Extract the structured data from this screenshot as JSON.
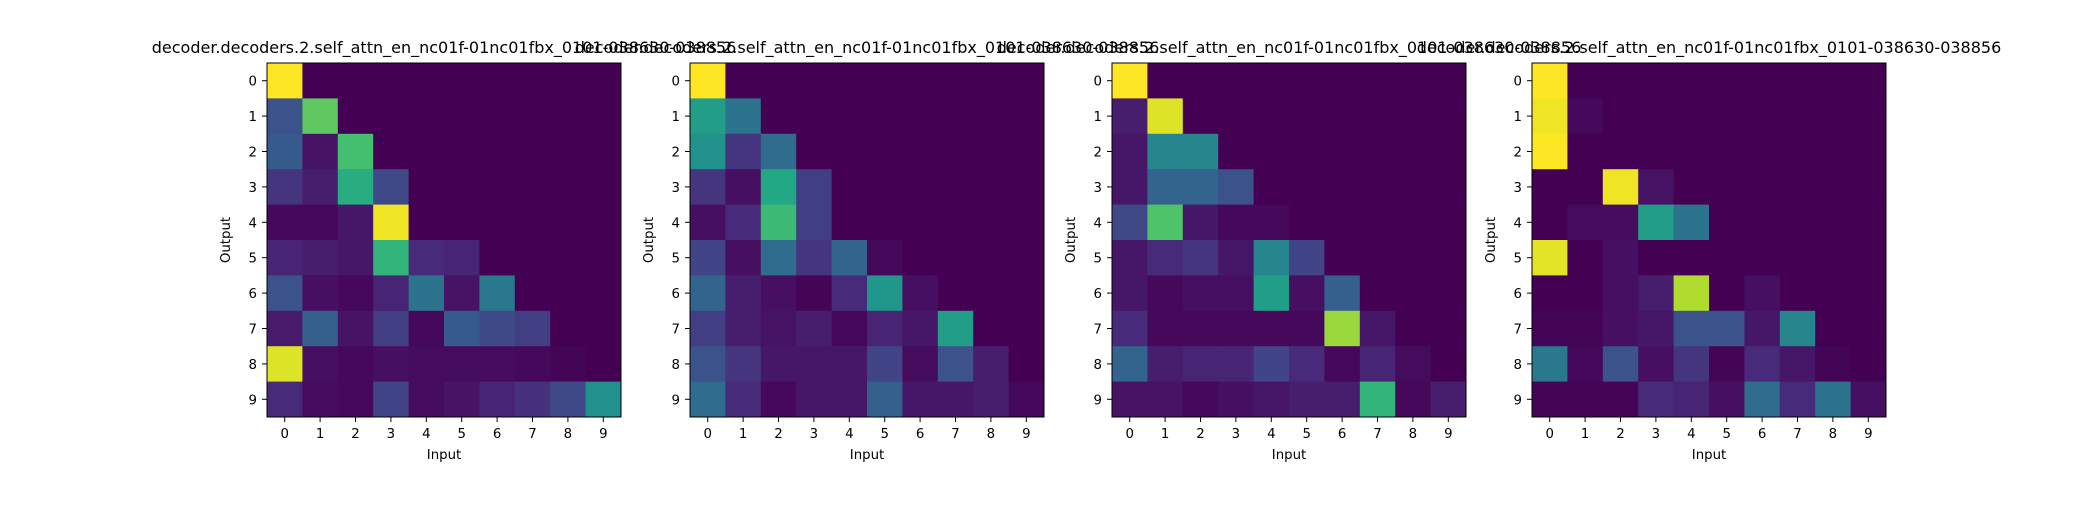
{
  "chart_data": [
    {
      "type": "heatmap",
      "title": "decoder.decoders.2.self_attn_en_nc01f-01nc01fbx_0101-038630-038856",
      "xlabel": "Input",
      "ylabel": "Output",
      "x_ticks": [
        "0",
        "1",
        "2",
        "3",
        "4",
        "5",
        "6",
        "7",
        "8",
        "9"
      ],
      "y_ticks": [
        "0",
        "1",
        "2",
        "3",
        "4",
        "5",
        "6",
        "7",
        "8",
        "9"
      ],
      "colormap": "viridis",
      "vmin": 0,
      "vmax": 1,
      "z": [
        [
          1.0,
          0.0,
          0.0,
          0.0,
          0.0,
          0.0,
          0.0,
          0.0,
          0.0,
          0.0
        ],
        [
          0.25,
          0.75,
          0.0,
          0.0,
          0.0,
          0.0,
          0.0,
          0.0,
          0.0,
          0.0
        ],
        [
          0.28,
          0.05,
          0.7,
          0.0,
          0.0,
          0.0,
          0.0,
          0.0,
          0.0,
          0.0
        ],
        [
          0.15,
          0.08,
          0.62,
          0.22,
          0.0,
          0.0,
          0.0,
          0.0,
          0.0,
          0.0
        ],
        [
          0.02,
          0.02,
          0.06,
          0.98,
          0.0,
          0.0,
          0.0,
          0.0,
          0.0,
          0.0
        ],
        [
          0.1,
          0.08,
          0.06,
          0.65,
          0.12,
          0.1,
          0.0,
          0.0,
          0.0,
          0.0
        ],
        [
          0.25,
          0.04,
          0.02,
          0.1,
          0.38,
          0.05,
          0.4,
          0.0,
          0.0,
          0.0
        ],
        [
          0.07,
          0.3,
          0.05,
          0.18,
          0.02,
          0.28,
          0.22,
          0.18,
          0.0,
          0.0
        ],
        [
          0.95,
          0.04,
          0.02,
          0.04,
          0.03,
          0.03,
          0.03,
          0.02,
          0.01,
          0.0
        ],
        [
          0.12,
          0.03,
          0.02,
          0.2,
          0.03,
          0.05,
          0.1,
          0.14,
          0.22,
          0.5
        ]
      ]
    },
    {
      "type": "heatmap",
      "title": "decoder.decoders.2.self_attn_en_nc01f-01nc01fbx_0101-038630-038856",
      "xlabel": "Input",
      "ylabel": "Output",
      "x_ticks": [
        "0",
        "1",
        "2",
        "3",
        "4",
        "5",
        "6",
        "7",
        "8",
        "9"
      ],
      "y_ticks": [
        "0",
        "1",
        "2",
        "3",
        "4",
        "5",
        "6",
        "7",
        "8",
        "9"
      ],
      "colormap": "viridis",
      "vmin": 0,
      "vmax": 1,
      "z": [
        [
          1.0,
          0.0,
          0.0,
          0.0,
          0.0,
          0.0,
          0.0,
          0.0,
          0.0,
          0.0
        ],
        [
          0.55,
          0.38,
          0.0,
          0.0,
          0.0,
          0.0,
          0.0,
          0.0,
          0.0,
          0.0
        ],
        [
          0.5,
          0.15,
          0.35,
          0.0,
          0.0,
          0.0,
          0.0,
          0.0,
          0.0,
          0.0
        ],
        [
          0.15,
          0.04,
          0.6,
          0.18,
          0.0,
          0.0,
          0.0,
          0.0,
          0.0,
          0.0
        ],
        [
          0.04,
          0.12,
          0.68,
          0.18,
          0.0,
          0.0,
          0.0,
          0.0,
          0.0,
          0.0
        ],
        [
          0.2,
          0.04,
          0.35,
          0.15,
          0.32,
          0.02,
          0.0,
          0.0,
          0.0,
          0.0
        ],
        [
          0.32,
          0.08,
          0.04,
          0.01,
          0.12,
          0.52,
          0.04,
          0.0,
          0.0,
          0.0
        ],
        [
          0.18,
          0.08,
          0.05,
          0.08,
          0.02,
          0.1,
          0.06,
          0.55,
          0.0,
          0.0
        ],
        [
          0.25,
          0.15,
          0.06,
          0.06,
          0.06,
          0.2,
          0.03,
          0.25,
          0.08,
          0.0
        ],
        [
          0.35,
          0.12,
          0.02,
          0.06,
          0.06,
          0.3,
          0.06,
          0.06,
          0.08,
          0.02
        ]
      ]
    },
    {
      "type": "heatmap",
      "title": "decoder.decoders.2.self_attn_en_nc01f-01nc01fbx_0101-038630-038856",
      "xlabel": "Input",
      "ylabel": "Output",
      "x_ticks": [
        "0",
        "1",
        "2",
        "3",
        "4",
        "5",
        "6",
        "7",
        "8",
        "9"
      ],
      "y_ticks": [
        "0",
        "1",
        "2",
        "3",
        "4",
        "5",
        "6",
        "7",
        "8",
        "9"
      ],
      "colormap": "viridis",
      "vmin": 0,
      "vmax": 1,
      "z": [
        [
          1.0,
          0.0,
          0.0,
          0.0,
          0.0,
          0.0,
          0.0,
          0.0,
          0.0,
          0.0
        ],
        [
          0.08,
          0.95,
          0.0,
          0.0,
          0.0,
          0.0,
          0.0,
          0.0,
          0.0,
          0.0
        ],
        [
          0.06,
          0.45,
          0.45,
          0.0,
          0.0,
          0.0,
          0.0,
          0.0,
          0.0,
          0.0
        ],
        [
          0.06,
          0.32,
          0.32,
          0.25,
          0.0,
          0.0,
          0.0,
          0.0,
          0.0,
          0.0
        ],
        [
          0.22,
          0.72,
          0.06,
          0.02,
          0.02,
          0.0,
          0.0,
          0.0,
          0.0,
          0.0
        ],
        [
          0.06,
          0.12,
          0.15,
          0.06,
          0.45,
          0.2,
          0.0,
          0.0,
          0.0,
          0.0
        ],
        [
          0.06,
          0.02,
          0.04,
          0.04,
          0.55,
          0.04,
          0.3,
          0.0,
          0.0,
          0.0
        ],
        [
          0.12,
          0.02,
          0.02,
          0.02,
          0.02,
          0.02,
          0.85,
          0.06,
          0.0,
          0.0
        ],
        [
          0.32,
          0.08,
          0.1,
          0.1,
          0.2,
          0.12,
          0.02,
          0.1,
          0.03,
          0.0
        ],
        [
          0.05,
          0.05,
          0.02,
          0.04,
          0.06,
          0.08,
          0.08,
          0.65,
          0.02,
          0.08
        ]
      ]
    },
    {
      "type": "heatmap",
      "title": "decoder.decoders.2.self_attn_en_nc01f-01nc01fbx_0101-038630-038856",
      "xlabel": "Input",
      "ylabel": "Output",
      "x_ticks": [
        "0",
        "1",
        "2",
        "3",
        "4",
        "5",
        "6",
        "7",
        "8",
        "9"
      ],
      "y_ticks": [
        "0",
        "1",
        "2",
        "3",
        "4",
        "5",
        "6",
        "7",
        "8",
        "9"
      ],
      "colormap": "viridis",
      "vmin": 0,
      "vmax": 1,
      "z": [
        [
          1.0,
          0.0,
          0.0,
          0.0,
          0.0,
          0.0,
          0.0,
          0.0,
          0.0,
          0.0
        ],
        [
          0.98,
          0.02,
          0.0,
          0.0,
          0.0,
          0.0,
          0.0,
          0.0,
          0.0,
          0.0
        ],
        [
          1.0,
          0.0,
          0.0,
          0.0,
          0.0,
          0.0,
          0.0,
          0.0,
          0.0,
          0.0
        ],
        [
          0.0,
          0.0,
          0.98,
          0.05,
          0.0,
          0.0,
          0.0,
          0.0,
          0.0,
          0.0
        ],
        [
          0.0,
          0.03,
          0.03,
          0.55,
          0.38,
          0.0,
          0.0,
          0.0,
          0.0,
          0.0
        ],
        [
          0.96,
          0.0,
          0.04,
          0.0,
          0.0,
          0.0,
          0.0,
          0.0,
          0.0,
          0.0
        ],
        [
          0.0,
          0.0,
          0.04,
          0.08,
          0.88,
          0.0,
          0.04,
          0.0,
          0.0,
          0.0
        ],
        [
          0.01,
          0.01,
          0.04,
          0.06,
          0.25,
          0.25,
          0.06,
          0.45,
          0.0,
          0.0
        ],
        [
          0.4,
          0.02,
          0.25,
          0.04,
          0.15,
          0.01,
          0.12,
          0.06,
          0.01,
          0.0
        ],
        [
          0.01,
          0.01,
          0.01,
          0.12,
          0.1,
          0.04,
          0.35,
          0.12,
          0.38,
          0.04
        ]
      ]
    }
  ]
}
